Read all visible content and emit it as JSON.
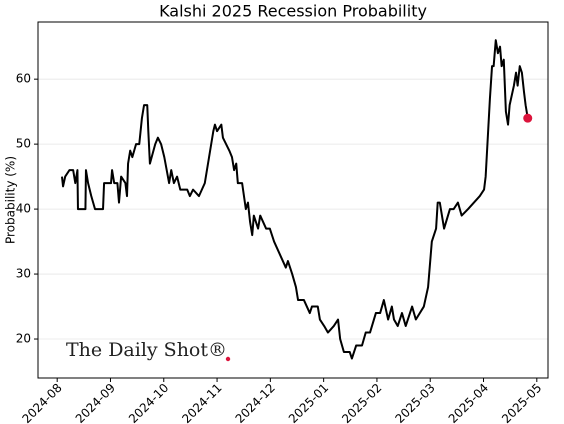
{
  "chart_data": {
    "type": "line",
    "title": "Kalshi 2025 Recession Probability",
    "y_label": "Probability (%)",
    "watermark": "The Daily Shot®",
    "xlim": [
      -0.36,
      9.21
    ],
    "xticks": [
      {
        "value": 0,
        "label": "2024-08"
      },
      {
        "value": 1,
        "label": "2024-09"
      },
      {
        "value": 2,
        "label": "2024-10"
      },
      {
        "value": 3,
        "label": "2024-11"
      },
      {
        "value": 4,
        "label": "2024-12"
      },
      {
        "value": 5,
        "label": "2025-01"
      },
      {
        "value": 6,
        "label": "2025-02"
      },
      {
        "value": 7,
        "label": "2025-03"
      },
      {
        "value": 8,
        "label": "2025-04"
      },
      {
        "value": 9,
        "label": "2025-05"
      }
    ],
    "ylim": [
      14,
      68.8
    ],
    "yticks": [
      20,
      30,
      40,
      50,
      60
    ],
    "grid": "y",
    "highlight_last": true,
    "highlight_color": "#dc143c",
    "series": [
      {
        "name": "Probability",
        "color": "#000000",
        "x": [
          0.09,
          0.11,
          0.15,
          0.23,
          0.3,
          0.34,
          0.38,
          0.39,
          0.53,
          0.54,
          0.58,
          0.64,
          0.71,
          0.86,
          0.88,
          1.01,
          1.03,
          1.07,
          1.13,
          1.16,
          1.2,
          1.28,
          1.31,
          1.33,
          1.37,
          1.41,
          1.48,
          1.54,
          1.59,
          1.63,
          1.69,
          1.71,
          1.74,
          1.84,
          1.89,
          1.95,
          2.01,
          2.1,
          2.14,
          2.19,
          2.25,
          2.31,
          2.44,
          2.49,
          2.55,
          2.66,
          2.77,
          2.85,
          2.93,
          2.96,
          3.0,
          3.08,
          3.11,
          3.23,
          3.28,
          3.32,
          3.36,
          3.39,
          3.47,
          3.54,
          3.58,
          3.62,
          3.66,
          3.69,
          3.77,
          3.81,
          3.92,
          3.99,
          4.07,
          4.18,
          4.29,
          4.33,
          4.41,
          4.48,
          4.52,
          4.63,
          4.74,
          4.78,
          4.89,
          4.93,
          5.01,
          5.08,
          5.19,
          5.27,
          5.31,
          5.38,
          5.49,
          5.53,
          5.61,
          5.72,
          5.79,
          5.87,
          5.98,
          6.06,
          6.13,
          6.21,
          6.28,
          6.32,
          6.39,
          6.47,
          6.54,
          6.66,
          6.73,
          6.88,
          6.96,
          7.03,
          7.11,
          7.14,
          7.18,
          7.26,
          7.37,
          7.44,
          7.52,
          7.59,
          7.71,
          7.82,
          7.93,
          8.01,
          8.04,
          8.08,
          8.12,
          8.16,
          8.19,
          8.23,
          8.27,
          8.31,
          8.34,
          8.38,
          8.42,
          8.46,
          8.49,
          8.57,
          8.61,
          8.64,
          8.68,
          8.72,
          8.76,
          8.79,
          8.83
        ],
        "values": [
          45,
          43.5,
          45,
          46,
          46,
          44,
          46,
          40,
          40,
          46,
          44,
          42,
          40,
          40,
          44,
          44,
          46,
          44,
          44,
          41,
          45,
          44,
          42,
          47,
          49,
          48,
          50,
          50,
          54,
          56,
          56,
          52,
          47,
          50,
          51,
          50,
          48,
          44,
          46,
          44,
          45,
          43,
          43,
          42,
          43,
          42,
          44,
          48,
          52,
          53,
          52,
          53,
          51,
          49,
          48,
          46,
          47,
          44,
          44,
          40,
          41,
          38,
          36,
          39,
          37,
          39,
          37,
          37,
          35,
          33,
          31,
          32,
          30,
          28,
          26,
          26,
          24,
          25,
          25,
          23,
          22,
          21,
          22,
          23,
          20,
          18,
          18,
          17,
          19,
          19,
          21,
          21,
          24,
          24,
          26,
          23,
          25,
          23,
          22,
          24,
          22,
          25,
          23,
          25,
          28,
          35,
          37,
          41,
          41,
          37,
          40,
          40,
          41,
          39,
          40,
          41,
          42,
          43,
          45,
          51,
          57,
          62,
          62,
          66,
          64,
          65,
          62,
          63,
          55,
          53,
          56,
          59,
          61,
          59,
          62,
          61,
          58,
          56,
          54
        ]
      }
    ]
  }
}
